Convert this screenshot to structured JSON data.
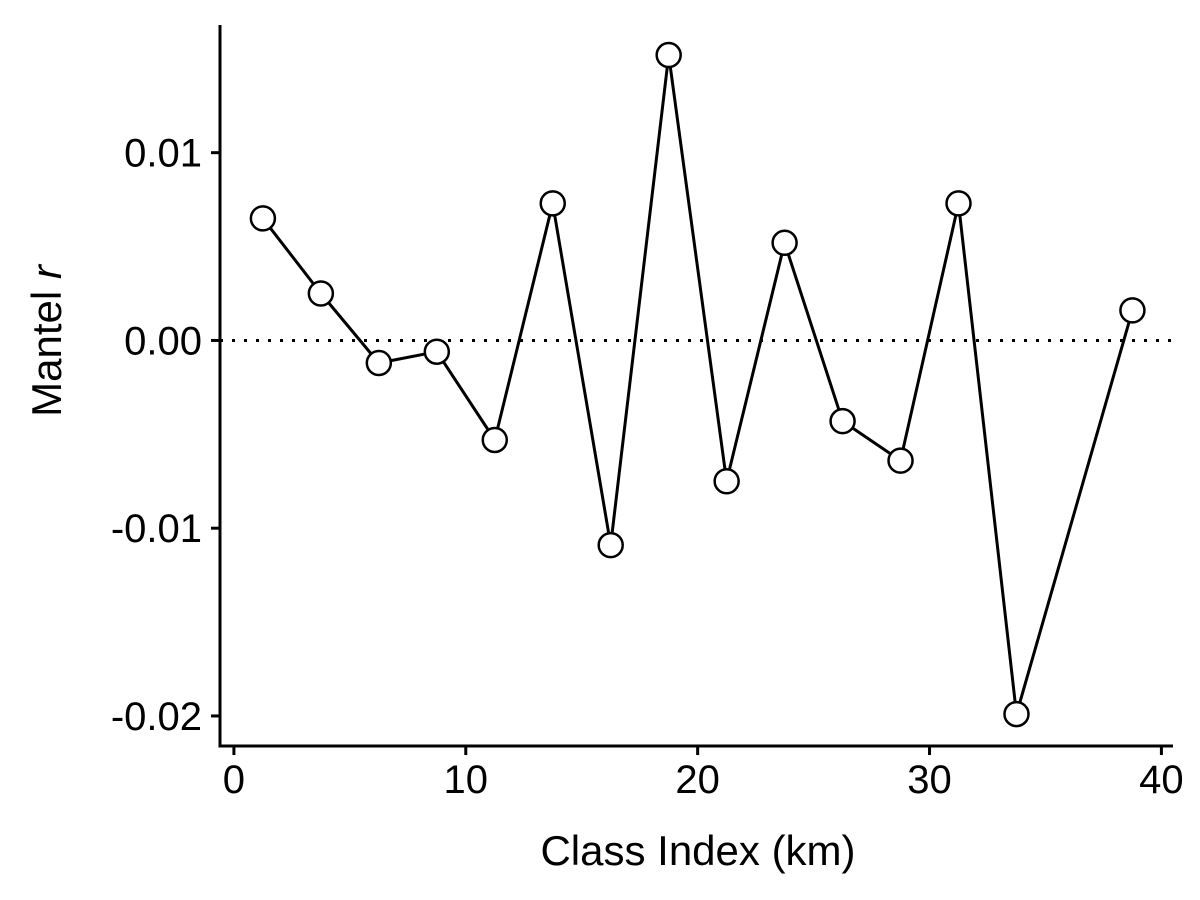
{
  "chart_data": {
    "type": "line",
    "xlabel": "Class Index (km)",
    "ylabel": {
      "main": "Mantel ",
      "italic": "r"
    },
    "xlim": [
      -0.6,
      40.5
    ],
    "ylim": [
      -0.0216,
      0.0168
    ],
    "x_ticks": [
      0,
      10,
      20,
      30,
      40
    ],
    "x_tick_labels": [
      "0",
      "10",
      "20",
      "30",
      "40"
    ],
    "y_ticks": [
      -0.02,
      -0.01,
      0.0,
      0.01
    ],
    "y_tick_labels": [
      "-0.02",
      "-0.01",
      "0.00",
      "0.01"
    ],
    "reference_line": {
      "y": 0,
      "style": "dotted"
    },
    "grid": false,
    "legend": "none",
    "series": [
      {
        "x": [
          1.25,
          3.75,
          6.25,
          8.75,
          11.25,
          13.75,
          16.25,
          18.75,
          21.25,
          23.75,
          26.25,
          28.75,
          31.25,
          33.75,
          38.75
        ],
        "y": [
          0.0065,
          0.0025,
          -0.0012,
          -0.0006,
          -0.0053,
          0.0073,
          -0.0109,
          0.0152,
          -0.0075,
          0.0052,
          -0.0043,
          -0.0064,
          0.0073,
          -0.0199,
          0.0016
        ]
      }
    ],
    "colors": {
      "line": "#000000",
      "marker_fill": "#ffffff",
      "marker_stroke": "#000000",
      "axis": "#000000"
    }
  }
}
